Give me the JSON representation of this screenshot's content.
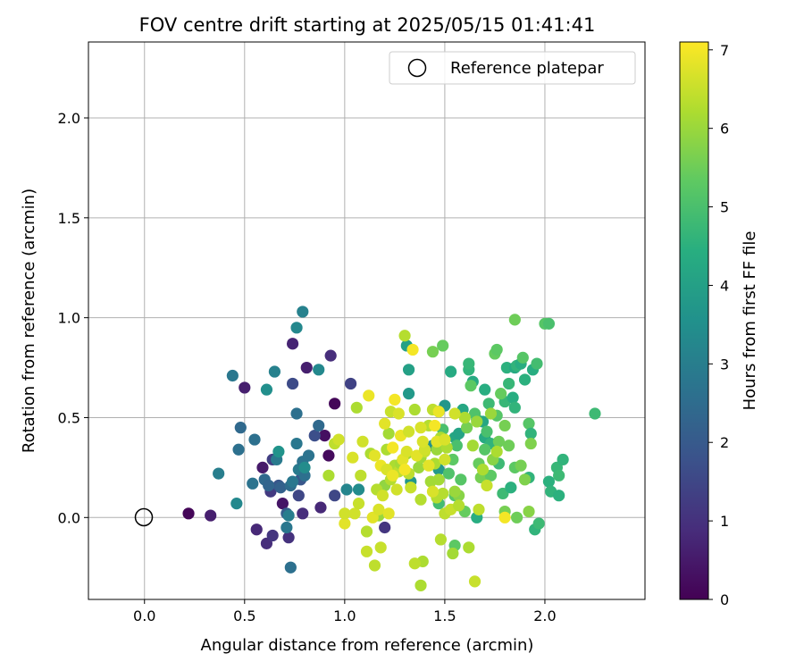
{
  "chart_data": {
    "type": "scatter",
    "title": "FOV centre drift starting at 2025/05/15 01:41:41",
    "xlabel": "Angular distance from reference (arcmin)",
    "ylabel": "Rotation from reference (arcmin)",
    "xlim": [
      -0.28,
      2.5
    ],
    "ylim": [
      -0.41,
      2.38
    ],
    "xticks": [
      0.0,
      0.5,
      1.0,
      1.5,
      2.0
    ],
    "xtick_labels": [
      "0.0",
      "0.5",
      "1.0",
      "1.5",
      "2.0"
    ],
    "yticks": [
      0.0,
      0.5,
      1.0,
      1.5,
      2.0
    ],
    "ytick_labels": [
      "0.0",
      "0.5",
      "1.0",
      "1.5",
      "2.0"
    ],
    "grid": true,
    "legend": {
      "placement": "top-right",
      "entries": [
        "Reference platepar"
      ]
    },
    "reference_point": {
      "x": 0.0,
      "y": 0.0,
      "name": "Reference platepar"
    },
    "colorbar": {
      "label": "Hours from first FF file",
      "colormap": "viridis",
      "range": [
        0,
        7.1
      ],
      "ticks": [
        0,
        1,
        2,
        3,
        4,
        5,
        6,
        7
      ],
      "tick_labels": [
        "0",
        "1",
        "2",
        "3",
        "4",
        "5",
        "6",
        "7"
      ]
    },
    "points": [
      [
        0.22,
        0.02,
        0.1
      ],
      [
        0.33,
        0.01,
        0.6
      ],
      [
        0.5,
        0.65,
        0.6
      ],
      [
        0.56,
        -0.06,
        0.8
      ],
      [
        0.59,
        0.25,
        0.5
      ],
      [
        0.61,
        -0.13,
        0.9
      ],
      [
        0.64,
        -0.09,
        1.1
      ],
      [
        0.63,
        0.13,
        1.2
      ],
      [
        0.69,
        0.07,
        0.4
      ],
      [
        0.72,
        -0.1,
        1.0
      ],
      [
        0.74,
        0.87,
        0.7
      ],
      [
        0.79,
        0.02,
        0.9
      ],
      [
        0.81,
        0.75,
        0.6
      ],
      [
        0.88,
        0.05,
        0.8
      ],
      [
        0.9,
        0.41,
        0.3
      ],
      [
        0.92,
        0.31,
        0.2
      ],
      [
        0.93,
        0.81,
        0.9
      ],
      [
        0.95,
        0.57,
        0.1
      ],
      [
        1.03,
        0.67,
        1.4
      ],
      [
        1.2,
        -0.05,
        1.1
      ],
      [
        0.64,
        0.29,
        1.3
      ],
      [
        0.67,
        0.16,
        1.9
      ],
      [
        0.71,
        0.02,
        2.1
      ],
      [
        0.74,
        0.67,
        1.6
      ],
      [
        0.77,
        0.11,
        1.5
      ],
      [
        0.78,
        0.19,
        1.9
      ],
      [
        0.85,
        0.41,
        1.7
      ],
      [
        0.95,
        0.11,
        1.5
      ],
      [
        0.44,
        0.71,
        2.8
      ],
      [
        0.47,
        0.34,
        2.6
      ],
      [
        0.48,
        0.45,
        2.4
      ],
      [
        0.54,
        0.17,
        2.7
      ],
      [
        0.55,
        0.39,
        2.6
      ],
      [
        0.6,
        0.19,
        2.4
      ],
      [
        0.62,
        0.16,
        2.3
      ],
      [
        0.66,
        0.29,
        2.9
      ],
      [
        0.68,
        0.15,
        2.2
      ],
      [
        0.71,
        -0.05,
        2.8
      ],
      [
        0.72,
        0.01,
        3.0
      ],
      [
        0.73,
        0.16,
        2.5
      ],
      [
        0.73,
        -0.25,
        2.6
      ],
      [
        0.74,
        0.18,
        2.8
      ],
      [
        0.76,
        0.52,
        2.6
      ],
      [
        0.76,
        0.37,
        2.8
      ],
      [
        0.77,
        0.24,
        2.9
      ],
      [
        0.79,
        0.28,
        2.7
      ],
      [
        0.8,
        0.21,
        2.6
      ],
      [
        0.82,
        0.31,
        2.7
      ],
      [
        0.87,
        0.46,
        2.4
      ],
      [
        0.87,
        0.74,
        3.3
      ],
      [
        0.65,
        0.73,
        3.1
      ],
      [
        0.79,
        1.03,
        3.1
      ],
      [
        0.76,
        0.95,
        3.3
      ],
      [
        0.61,
        0.64,
        3.5
      ],
      [
        0.46,
        0.07,
        3.3
      ],
      [
        0.37,
        0.22,
        3.0
      ],
      [
        0.67,
        0.33,
        3.6
      ],
      [
        0.8,
        0.25,
        3.4
      ],
      [
        1.01,
        0.14,
        3.2
      ],
      [
        1.07,
        0.14,
        3.4
      ],
      [
        1.31,
        0.86,
        4.0
      ],
      [
        1.32,
        0.62,
        3.8
      ],
      [
        1.32,
        0.74,
        4.0
      ],
      [
        1.33,
        0.18,
        3.7
      ],
      [
        1.44,
        0.36,
        3.5
      ],
      [
        1.47,
        0.53,
        3.9
      ],
      [
        1.47,
        0.24,
        3.8
      ],
      [
        1.5,
        0.56,
        3.7
      ],
      [
        1.53,
        0.73,
        4.3
      ],
      [
        1.55,
        0.4,
        4.2
      ],
      [
        1.57,
        0.42,
        4.1
      ],
      [
        1.59,
        0.54,
        4.2
      ],
      [
        1.62,
        0.74,
        4.6
      ],
      [
        1.62,
        0.77,
        4.7
      ],
      [
        1.64,
        0.68,
        4.3
      ],
      [
        1.66,
        0.49,
        4.5
      ],
      [
        1.66,
        0.0,
        4.4
      ],
      [
        1.69,
        0.48,
        4.2
      ],
      [
        1.7,
        0.64,
        4.4
      ],
      [
        1.7,
        0.4,
        4.3
      ],
      [
        1.72,
        0.57,
        4.8
      ],
      [
        1.73,
        0.37,
        4.6
      ],
      [
        1.75,
        0.82,
        5.4
      ],
      [
        1.76,
        0.84,
        5.3
      ],
      [
        1.77,
        0.27,
        4.8
      ],
      [
        1.79,
        0.12,
        4.8
      ],
      [
        1.8,
        0.58,
        4.7
      ],
      [
        1.81,
        0.75,
        4.5
      ],
      [
        1.82,
        0.67,
        4.7
      ],
      [
        1.83,
        0.15,
        4.5
      ],
      [
        1.84,
        0.6,
        4.4
      ],
      [
        1.85,
        0.55,
        4.6
      ],
      [
        1.85,
        0.75,
        4.3
      ],
      [
        1.86,
        0.76,
        4.6
      ],
      [
        1.88,
        0.77,
        4.4
      ],
      [
        1.89,
        0.8,
        5.2
      ],
      [
        1.9,
        0.69,
        4.5
      ],
      [
        1.92,
        0.2,
        4.6
      ],
      [
        1.92,
        0.47,
        5.2
      ],
      [
        1.93,
        0.42,
        4.6
      ],
      [
        1.94,
        0.74,
        4.4
      ],
      [
        1.95,
        -0.06,
        4.6
      ],
      [
        1.96,
        0.77,
        4.9
      ],
      [
        1.97,
        -0.03,
        4.8
      ],
      [
        2.0,
        0.97,
        5.2
      ],
      [
        2.02,
        0.18,
        4.5
      ],
      [
        2.02,
        0.97,
        5.0
      ],
      [
        2.03,
        0.13,
        4.6
      ],
      [
        2.06,
        0.25,
        4.7
      ],
      [
        2.07,
        0.21,
        4.8
      ],
      [
        2.07,
        0.11,
        4.5
      ],
      [
        2.09,
        0.29,
        4.6
      ],
      [
        2.25,
        0.52,
        4.8
      ],
      [
        1.85,
        0.99,
        5.5
      ],
      [
        1.47,
        0.07,
        4.9
      ],
      [
        1.49,
        0.44,
        5.0
      ],
      [
        1.52,
        0.22,
        5.1
      ],
      [
        1.54,
        0.29,
        5.3
      ],
      [
        1.55,
        0.11,
        5.2
      ],
      [
        1.56,
        0.36,
        5.0
      ],
      [
        1.58,
        0.19,
        5.2
      ],
      [
        1.6,
        0.03,
        5.4
      ],
      [
        1.61,
        0.45,
        5.6
      ],
      [
        1.63,
        0.66,
        5.3
      ],
      [
        1.65,
        0.52,
        5.1
      ],
      [
        1.67,
        0.27,
        5.4
      ],
      [
        1.68,
        0.2,
        5.6
      ],
      [
        1.7,
        0.34,
        5.2
      ],
      [
        1.71,
        0.43,
        5.0
      ],
      [
        1.73,
        0.21,
        5.3
      ],
      [
        1.74,
        0.29,
        5.8
      ],
      [
        1.76,
        0.51,
        5.2
      ],
      [
        1.77,
        0.38,
        5.5
      ],
      [
        1.78,
        0.62,
        5.4
      ],
      [
        1.8,
        0.46,
        5.6
      ],
      [
        1.8,
        0.03,
        5.6
      ],
      [
        1.82,
        0.36,
        5.5
      ],
      [
        1.85,
        0.25,
        5.3
      ],
      [
        1.86,
        0.0,
        5.5
      ],
      [
        1.88,
        0.26,
        5.6
      ],
      [
        1.9,
        0.19,
        5.7
      ],
      [
        1.92,
        0.03,
        5.8
      ],
      [
        1.93,
        0.37,
        5.7
      ],
      [
        1.44,
        0.83,
        5.6
      ],
      [
        1.49,
        0.86,
        5.4
      ],
      [
        1.55,
        -0.14,
        5.3
      ],
      [
        1.57,
        0.11,
        5.8
      ],
      [
        1.2,
        0.16,
        5.9
      ],
      [
        1.22,
        0.42,
        6.1
      ],
      [
        1.23,
        0.19,
        6.3
      ],
      [
        1.25,
        0.26,
        6.2
      ],
      [
        1.27,
        0.23,
        6.4
      ],
      [
        1.28,
        0.27,
        6.1
      ],
      [
        1.3,
        0.91,
        6.3
      ],
      [
        1.31,
        0.32,
        6.0
      ],
      [
        1.32,
        0.22,
        6.4
      ],
      [
        1.33,
        0.15,
        6.5
      ],
      [
        1.35,
        0.54,
        6.2
      ],
      [
        1.37,
        0.25,
        6.0
      ],
      [
        1.38,
        0.3,
        6.1
      ],
      [
        1.38,
        0.09,
        6.3
      ],
      [
        1.39,
        -0.22,
        6.2
      ],
      [
        1.4,
        0.33,
        6.5
      ],
      [
        1.42,
        0.46,
        6.3
      ],
      [
        1.43,
        0.18,
        6.1
      ],
      [
        1.44,
        0.54,
        6.4
      ],
      [
        1.45,
        0.27,
        6.2
      ],
      [
        1.46,
        0.34,
        6.0
      ],
      [
        1.46,
        0.1,
        6.3
      ],
      [
        1.47,
        0.19,
        6.1
      ],
      [
        1.48,
        0.4,
        6.2
      ],
      [
        1.49,
        0.12,
        6.3
      ],
      [
        1.5,
        0.02,
        6.4
      ],
      [
        1.51,
        0.35,
        6.2
      ],
      [
        1.53,
        0.04,
        6.5
      ],
      [
        1.54,
        -0.18,
        6.1
      ],
      [
        1.55,
        0.13,
        6.0
      ],
      [
        1.57,
        0.06,
        6.3
      ],
      [
        1.6,
        0.5,
        6.2
      ],
      [
        1.64,
        0.36,
        6.1
      ],
      [
        1.66,
        0.48,
        6.0
      ],
      [
        1.67,
        0.04,
        6.4
      ],
      [
        1.69,
        0.24,
        6.2
      ],
      [
        1.71,
        0.16,
        6.5
      ],
      [
        1.73,
        0.52,
        6.0
      ],
      [
        1.76,
        0.33,
        6.2
      ],
      [
        1.16,
        0.14,
        6.3
      ],
      [
        1.18,
        -0.15,
        6.5
      ],
      [
        1.06,
        0.55,
        6.2
      ],
      [
        1.08,
        0.21,
        6.4
      ],
      [
        1.11,
        -0.07,
        6.3
      ],
      [
        1.11,
        -0.17,
        6.5
      ],
      [
        1.13,
        0.32,
        6.2
      ],
      [
        1.15,
        -0.24,
        6.4
      ],
      [
        1.17,
        0.01,
        6.0
      ],
      [
        1.21,
        0.34,
        6.2
      ],
      [
        1.38,
        -0.34,
        6.2
      ],
      [
        1.35,
        -0.23,
        6.4
      ],
      [
        1.65,
        -0.32,
        6.5
      ],
      [
        1.48,
        -0.11,
        6.3
      ],
      [
        1.62,
        -0.15,
        6.2
      ],
      [
        0.92,
        0.21,
        6.2
      ],
      [
        0.95,
        0.37,
        6.4
      ],
      [
        0.97,
        0.39,
        6.6
      ],
      [
        1.0,
        -0.03,
        6.8
      ],
      [
        1.0,
        0.02,
        6.6
      ],
      [
        1.04,
        0.3,
        6.7
      ],
      [
        1.05,
        0.02,
        6.6
      ],
      [
        1.07,
        0.07,
        6.5
      ],
      [
        1.09,
        0.38,
        6.6
      ],
      [
        1.12,
        0.61,
        6.9
      ],
      [
        1.14,
        0.0,
        6.8
      ],
      [
        1.15,
        0.31,
        6.8
      ],
      [
        1.17,
        0.04,
        6.7
      ],
      [
        1.18,
        0.26,
        6.9
      ],
      [
        1.19,
        0.11,
        6.6
      ],
      [
        1.2,
        0.47,
        6.8
      ],
      [
        1.21,
        0.24,
        6.7
      ],
      [
        1.22,
        0.02,
        6.8
      ],
      [
        1.23,
        0.53,
        6.5
      ],
      [
        1.24,
        0.21,
        6.9
      ],
      [
        1.24,
        0.35,
        7.0
      ],
      [
        1.25,
        0.59,
        7.0
      ],
      [
        1.26,
        0.14,
        6.6
      ],
      [
        1.27,
        0.52,
        6.7
      ],
      [
        1.28,
        0.41,
        6.9
      ],
      [
        1.29,
        0.29,
        6.8
      ],
      [
        1.3,
        0.24,
        7.0
      ],
      [
        1.31,
        0.33,
        6.7
      ],
      [
        1.32,
        0.43,
        6.6
      ],
      [
        1.34,
        0.84,
        7.0
      ],
      [
        1.36,
        0.31,
        6.8
      ],
      [
        1.38,
        0.45,
        6.7
      ],
      [
        1.4,
        0.34,
        6.6
      ],
      [
        1.42,
        0.26,
        6.8
      ],
      [
        1.44,
        0.13,
        6.7
      ],
      [
        1.45,
        0.46,
        7.0
      ],
      [
        1.46,
        0.38,
        6.8
      ],
      [
        1.5,
        0.29,
        6.6
      ],
      [
        1.8,
        0.0,
        7.0
      ],
      [
        1.55,
        0.52,
        6.6
      ],
      [
        1.5,
        0.39,
        6.7
      ],
      [
        1.47,
        0.53,
        6.9
      ],
      [
        1.39,
        0.38,
        6.7
      ]
    ]
  }
}
